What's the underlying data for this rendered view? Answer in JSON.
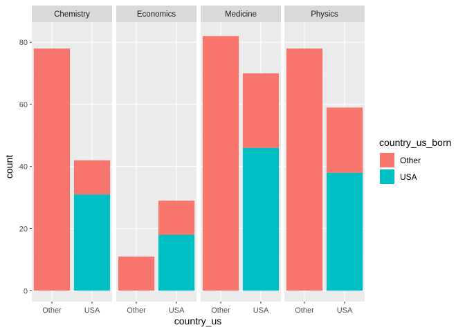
{
  "chart_data": {
    "type": "bar",
    "stacked": true,
    "facet_by": "category",
    "facets": [
      "Chemistry",
      "Economics",
      "Medicine",
      "Physics"
    ],
    "categories": [
      "Other",
      "USA"
    ],
    "series": [
      {
        "name": "Other",
        "color": "#F8766D",
        "values": {
          "Chemistry": [
            78,
            11
          ],
          "Economics": [
            11,
            11
          ],
          "Medicine": [
            82,
            24
          ],
          "Physics": [
            78,
            21
          ]
        }
      },
      {
        "name": "USA",
        "color": "#00BFC4",
        "values": {
          "Chemistry": [
            0,
            31
          ],
          "Economics": [
            0,
            18
          ],
          "Medicine": [
            0,
            46
          ],
          "Physics": [
            0,
            38
          ]
        }
      }
    ],
    "xlabel": "country_us",
    "ylabel": "count",
    "ylim": [
      -3.5,
      86.5
    ],
    "yticks": [
      0,
      20,
      40,
      60,
      80
    ],
    "legend_title": "country_us_born",
    "legend_position": "right",
    "panel_background": "#EBEBEB",
    "strip_background": "#D9D9D9",
    "grid": true
  }
}
